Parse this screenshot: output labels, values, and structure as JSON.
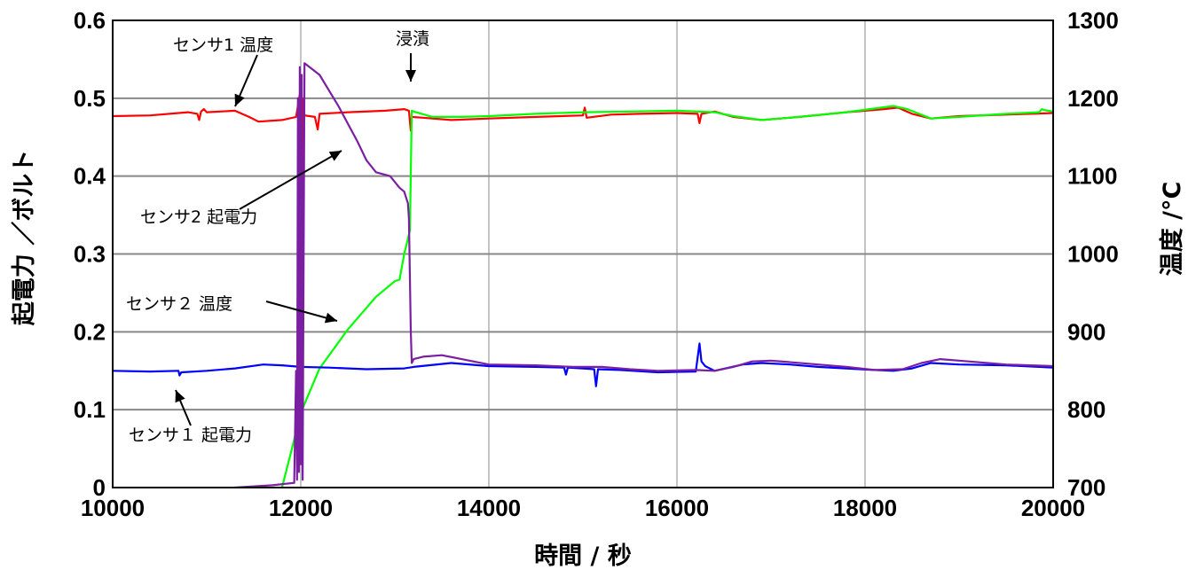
{
  "chart_data": {
    "type": "line",
    "xlabel": "時間 / 秒",
    "ylabel_left": "起電力 ／ボルト",
    "ylabel_right": "温度 /°C",
    "xlim": [
      10000,
      20000
    ],
    "ylim_left": [
      0,
      0.6
    ],
    "ylim_right": [
      700,
      1300
    ],
    "x_ticks": [
      10000,
      12000,
      14000,
      16000,
      18000,
      20000
    ],
    "x_tick_labels": [
      "10000",
      "12000",
      "14000",
      "16000",
      "18000",
      "20000"
    ],
    "y_left_ticks": [
      0,
      0.1,
      0.2,
      0.3,
      0.4,
      0.5,
      0.6
    ],
    "y_left_tick_labels": [
      "0",
      "0.1",
      "0.2",
      "0.3",
      "0.4",
      "0.5",
      "0.6"
    ],
    "y_right_ticks": [
      700,
      800,
      900,
      1000,
      1100,
      1200,
      1300
    ],
    "y_right_tick_labels": [
      "700",
      "800",
      "900",
      "1000",
      "1100",
      "1200",
      "1300"
    ],
    "grid": true,
    "legend": "none",
    "series": [
      {
        "name": "センサ1 温度",
        "axis": "right",
        "color": "#ff0000",
        "points": [
          [
            10000,
            1177
          ],
          [
            10400,
            1178
          ],
          [
            10800,
            1182
          ],
          [
            10900,
            1180
          ],
          [
            10920,
            1172
          ],
          [
            10940,
            1183
          ],
          [
            10970,
            1186
          ],
          [
            11000,
            1182
          ],
          [
            11300,
            1184
          ],
          [
            11450,
            1176
          ],
          [
            11550,
            1170
          ],
          [
            11800,
            1172
          ],
          [
            11950,
            1176
          ],
          [
            11990,
            1205
          ],
          [
            12000,
            730
          ],
          [
            12010,
            730
          ],
          [
            12020,
            1200
          ],
          [
            12040,
            1178
          ],
          [
            12150,
            1176
          ],
          [
            12180,
            1160
          ],
          [
            12200,
            1180
          ],
          [
            12500,
            1182
          ],
          [
            12900,
            1184
          ],
          [
            13100,
            1186
          ],
          [
            13150,
            1184
          ],
          [
            13170,
            1158
          ],
          [
            13180,
            1176
          ],
          [
            13300,
            1175
          ],
          [
            13600,
            1172
          ],
          [
            14000,
            1174
          ],
          [
            14500,
            1176
          ],
          [
            15000,
            1178
          ],
          [
            15020,
            1188
          ],
          [
            15040,
            1175
          ],
          [
            15300,
            1179
          ],
          [
            15600,
            1180
          ],
          [
            16000,
            1181
          ],
          [
            16220,
            1180
          ],
          [
            16240,
            1168
          ],
          [
            16260,
            1180
          ],
          [
            16400,
            1183
          ],
          [
            16600,
            1176
          ],
          [
            16900,
            1172
          ],
          [
            17300,
            1176
          ],
          [
            17800,
            1182
          ],
          [
            18200,
            1186
          ],
          [
            18350,
            1188
          ],
          [
            18500,
            1180
          ],
          [
            18700,
            1174
          ],
          [
            19000,
            1177
          ],
          [
            19500,
            1179
          ],
          [
            20000,
            1181
          ]
        ]
      },
      {
        "name": "センサ2 温度",
        "axis": "right",
        "color": "#00ff00",
        "points": [
          [
            11800,
            700
          ],
          [
            11900,
            747
          ],
          [
            12000,
            796
          ],
          [
            12200,
            853
          ],
          [
            12500,
            903
          ],
          [
            12800,
            945
          ],
          [
            13000,
            965
          ],
          [
            13050,
            967
          ],
          [
            13100,
            1000
          ],
          [
            13160,
            1030
          ],
          [
            13180,
            1184
          ],
          [
            13200,
            1183
          ],
          [
            13400,
            1176
          ],
          [
            13700,
            1176
          ],
          [
            14000,
            1177
          ],
          [
            14500,
            1180
          ],
          [
            15000,
            1182
          ],
          [
            15500,
            1183
          ],
          [
            16000,
            1184
          ],
          [
            16400,
            1182
          ],
          [
            16600,
            1177
          ],
          [
            16900,
            1172
          ],
          [
            17300,
            1176
          ],
          [
            17800,
            1182
          ],
          [
            18300,
            1190
          ],
          [
            18450,
            1186
          ],
          [
            18700,
            1174
          ],
          [
            19000,
            1176
          ],
          [
            19500,
            1180
          ],
          [
            19850,
            1182
          ],
          [
            19880,
            1186
          ],
          [
            19900,
            1185
          ],
          [
            20000,
            1183
          ]
        ]
      },
      {
        "name": "センサ1 起電力",
        "axis": "left",
        "color": "#0000ff",
        "points": [
          [
            10000,
            0.15
          ],
          [
            10400,
            0.149
          ],
          [
            10700,
            0.15
          ],
          [
            10710,
            0.144
          ],
          [
            10730,
            0.148
          ],
          [
            11000,
            0.15
          ],
          [
            11300,
            0.153
          ],
          [
            11600,
            0.158
          ],
          [
            11800,
            0.157
          ],
          [
            12000,
            0.155
          ],
          [
            12300,
            0.154
          ],
          [
            12700,
            0.152
          ],
          [
            13100,
            0.153
          ],
          [
            13200,
            0.155
          ],
          [
            13600,
            0.16
          ],
          [
            14000,
            0.156
          ],
          [
            14500,
            0.155
          ],
          [
            14800,
            0.154
          ],
          [
            14820,
            0.145
          ],
          [
            14840,
            0.154
          ],
          [
            15000,
            0.153
          ],
          [
            15120,
            0.152
          ],
          [
            15140,
            0.13
          ],
          [
            15160,
            0.152
          ],
          [
            15400,
            0.151
          ],
          [
            15800,
            0.148
          ],
          [
            16200,
            0.149
          ],
          [
            16240,
            0.185
          ],
          [
            16260,
            0.162
          ],
          [
            16300,
            0.156
          ],
          [
            16400,
            0.15
          ],
          [
            16700,
            0.158
          ],
          [
            16900,
            0.16
          ],
          [
            17200,
            0.158
          ],
          [
            17500,
            0.155
          ],
          [
            17800,
            0.153
          ],
          [
            18100,
            0.151
          ],
          [
            18300,
            0.15
          ],
          [
            18500,
            0.153
          ],
          [
            18700,
            0.16
          ],
          [
            19000,
            0.158
          ],
          [
            19500,
            0.157
          ],
          [
            20000,
            0.154
          ]
        ]
      },
      {
        "name": "センサ2 起電力",
        "axis": "left",
        "color": "#7b1fa2",
        "points": [
          [
            11300,
            0.0
          ],
          [
            11700,
            0.003
          ],
          [
            11930,
            0.006
          ],
          [
            11950,
            0.15
          ],
          [
            11960,
            0.01
          ],
          [
            11970,
            0.5
          ],
          [
            11980,
            0.02
          ],
          [
            11990,
            0.54
          ],
          [
            12000,
            0.03
          ],
          [
            12010,
            0.53
          ],
          [
            12020,
            0.01
          ],
          [
            12040,
            0.545
          ],
          [
            12200,
            0.53
          ],
          [
            12400,
            0.49
          ],
          [
            12600,
            0.445
          ],
          [
            12700,
            0.42
          ],
          [
            12800,
            0.405
          ],
          [
            12950,
            0.4
          ],
          [
            13050,
            0.385
          ],
          [
            13100,
            0.38
          ],
          [
            13140,
            0.365
          ],
          [
            13150,
            0.345
          ],
          [
            13170,
            0.2
          ],
          [
            13180,
            0.16
          ],
          [
            13200,
            0.165
          ],
          [
            13300,
            0.168
          ],
          [
            13500,
            0.17
          ],
          [
            14000,
            0.158
          ],
          [
            14500,
            0.157
          ],
          [
            14900,
            0.155
          ],
          [
            15200,
            0.155
          ],
          [
            15500,
            0.152
          ],
          [
            15800,
            0.15
          ],
          [
            16200,
            0.151
          ],
          [
            16400,
            0.15
          ],
          [
            16600,
            0.155
          ],
          [
            16800,
            0.162
          ],
          [
            17000,
            0.163
          ],
          [
            17400,
            0.159
          ],
          [
            17800,
            0.155
          ],
          [
            18100,
            0.151
          ],
          [
            18400,
            0.152
          ],
          [
            18600,
            0.16
          ],
          [
            18800,
            0.165
          ],
          [
            19100,
            0.162
          ],
          [
            19500,
            0.158
          ],
          [
            20000,
            0.156
          ]
        ]
      }
    ],
    "annotations": [
      {
        "text": "センサ1 温度"
      },
      {
        "text": "浸漬"
      },
      {
        "text": "センサ2 起電力"
      },
      {
        "text": "センサ２ 温度"
      },
      {
        "text": "センサ１ 起電力"
      }
    ]
  }
}
